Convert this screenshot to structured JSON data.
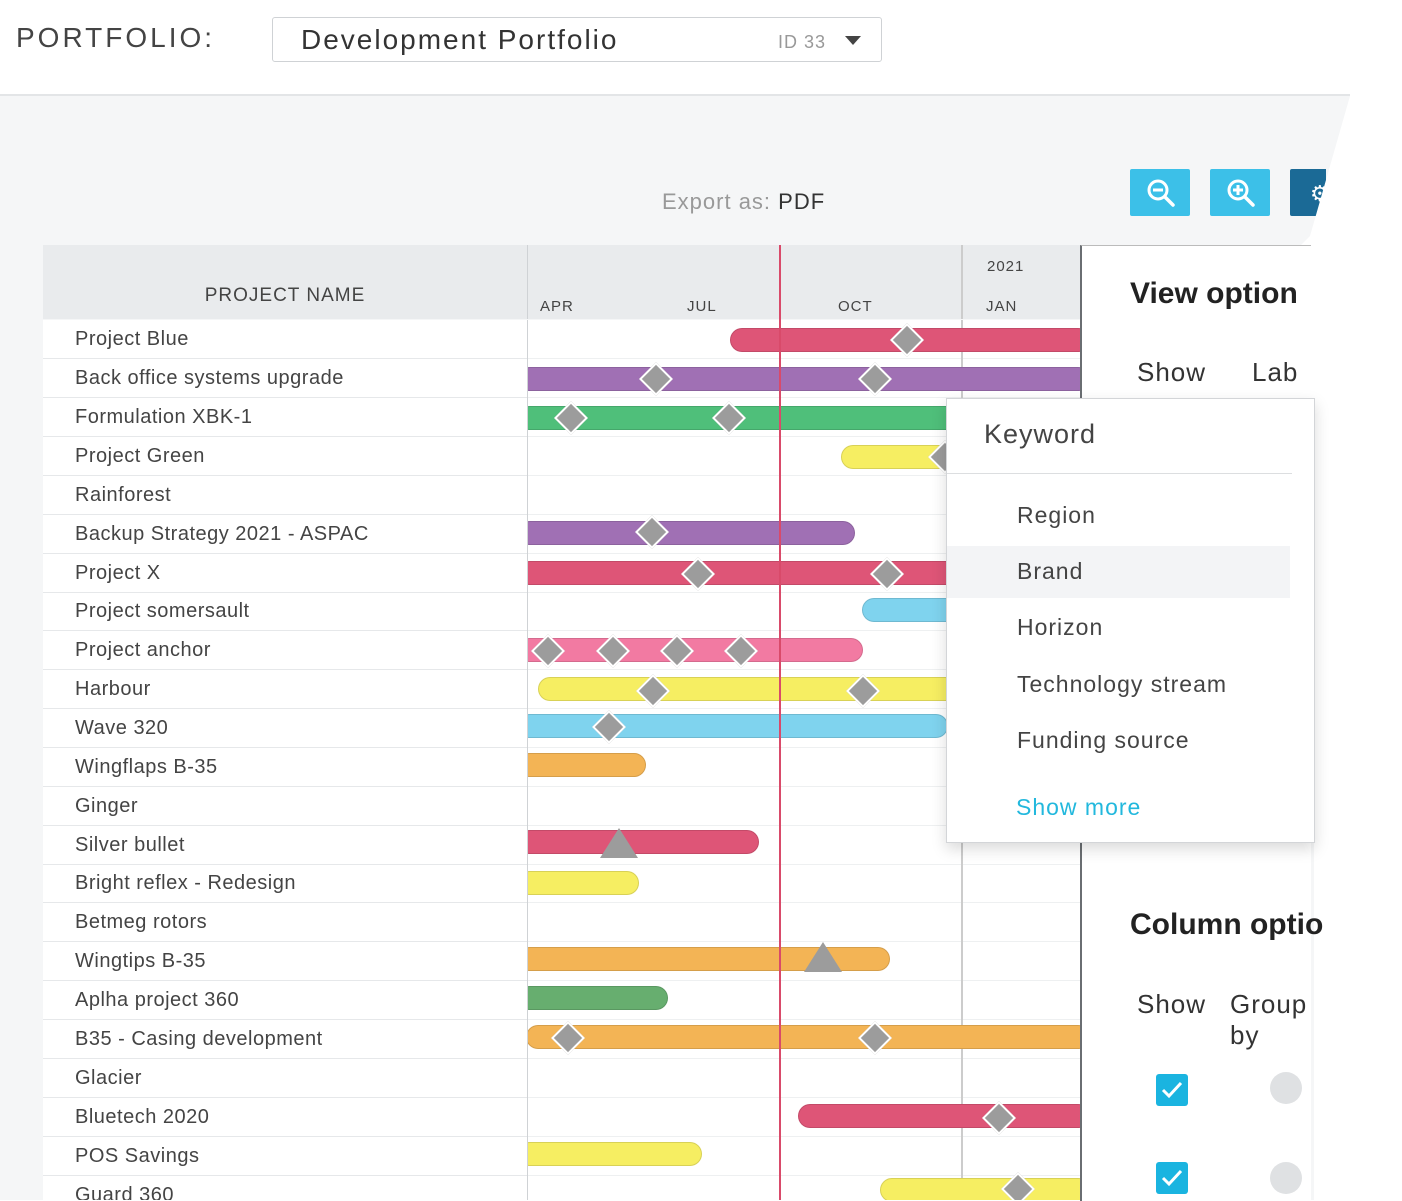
{
  "header": {
    "portfolio_label": "PORTFOLIO:",
    "selected_portfolio": "Development Portfolio",
    "selected_id": "ID 33"
  },
  "toolbar": {
    "export_prefix": "Export as:",
    "export_format": "PDF",
    "zoom_out_icon": "zoom-out-icon",
    "zoom_in_icon": "zoom-in-icon",
    "settings_icon": "gear-icon",
    "accent_color": "#3cc0e8",
    "settings_color": "#1b6a96"
  },
  "grid": {
    "name_header": "PROJECT NAME",
    "year_label": "2021",
    "months": [
      "APR",
      "JUL",
      "OCT",
      "JAN"
    ],
    "today_line_color": "#d94a6a"
  },
  "projects": [
    {
      "name": "Project Blue"
    },
    {
      "name": "Back office systems upgrade"
    },
    {
      "name": "Formulation XBK-1"
    },
    {
      "name": "Project Green"
    },
    {
      "name": "Rainforest"
    },
    {
      "name": "Backup Strategy 2021 - ASPAC"
    },
    {
      "name": "Project X"
    },
    {
      "name": "Project somersault"
    },
    {
      "name": "Project anchor"
    },
    {
      "name": "Harbour"
    },
    {
      "name": "Wave 320"
    },
    {
      "name": "Wingflaps B-35"
    },
    {
      "name": "Ginger"
    },
    {
      "name": "Silver bullet"
    },
    {
      "name": "Bright reflex - Redesign"
    },
    {
      "name": "Betmeg rotors"
    },
    {
      "name": "Wingtips B-35"
    },
    {
      "name": "Aplha project 360"
    },
    {
      "name": "B35 - Casing development"
    },
    {
      "name": "Glacier"
    },
    {
      "name": "Bluetech 2020"
    },
    {
      "name": "POS Savings"
    },
    {
      "name": "Guard 360"
    }
  ],
  "view_panel": {
    "title": "View option",
    "show_label": "Show",
    "label_label": "Lab",
    "column_title": "Column optio",
    "column_show_label": "Show",
    "group_by_label": "Group by"
  },
  "keyword_dropdown": {
    "header": "Keyword",
    "items": [
      "Region",
      "Brand",
      "Horizon",
      "Technology stream",
      "Funding source"
    ],
    "highlighted": "Brand",
    "show_more": "Show more"
  },
  "palette": {
    "red": "#de5577",
    "purple": "#a070b4",
    "green": "#4fbf7a",
    "yellow": "#f6ee62",
    "blue": "#7fd3ee",
    "pink": "#f27aa2",
    "orange": "#f3b455",
    "darkgreen": "#67ae6f"
  }
}
